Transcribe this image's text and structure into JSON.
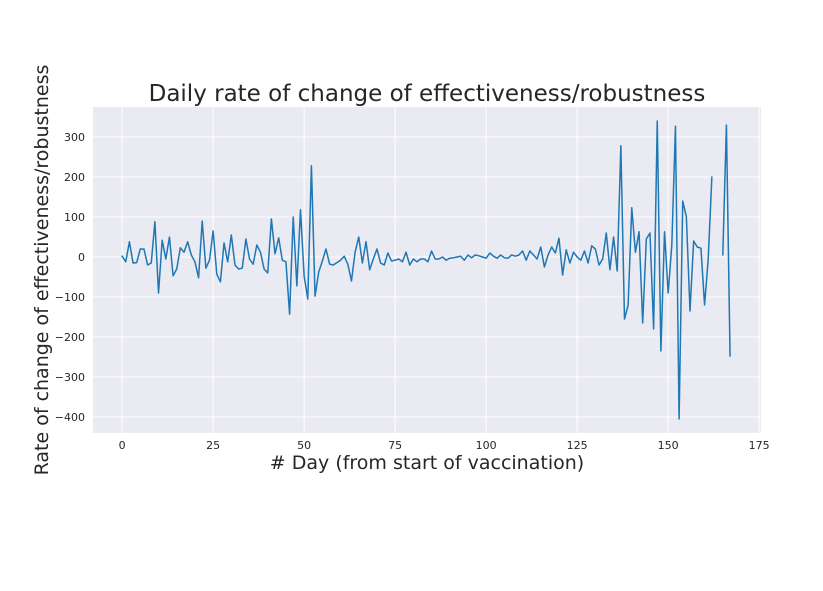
{
  "chart_data": {
    "type": "line",
    "title": "Daily rate of change of effectiveness/robustness",
    "xlabel": "# Day (from start of vaccination)",
    "ylabel": "Rate of change of effectiveness/robustness",
    "xlim": [
      -8,
      175.5
    ],
    "ylim": [
      -440,
      375
    ],
    "xticks": [
      0,
      25,
      50,
      75,
      100,
      125,
      150,
      175
    ],
    "yticks": [
      -400,
      -300,
      -200,
      -100,
      0,
      100,
      200,
      300
    ],
    "grid": true,
    "colors": {
      "background": "#eaeaf2",
      "grid": "#ffffff",
      "line": "#1f77b4",
      "text": "#262626"
    },
    "series": [
      {
        "x": [
          0,
          1,
          2,
          3,
          4,
          5,
          6,
          7,
          8,
          9,
          10,
          11,
          12,
          13,
          14,
          15,
          16,
          17,
          18,
          19,
          20,
          21,
          22,
          23,
          24,
          25,
          26,
          27,
          28,
          29,
          30,
          31,
          32,
          33,
          34,
          35,
          36,
          37,
          38,
          39,
          40,
          41,
          42,
          43,
          44,
          45,
          46,
          47,
          48,
          49,
          50,
          51,
          52,
          53,
          54,
          55,
          56,
          57,
          58,
          59,
          60,
          61,
          62,
          63,
          64,
          65,
          66,
          67,
          68,
          69,
          70,
          71,
          72,
          73,
          74,
          75,
          76,
          77,
          78,
          79,
          80,
          81,
          82,
          83,
          84,
          85,
          86,
          87,
          88,
          89,
          90,
          91,
          92,
          93,
          94,
          95,
          96,
          97,
          98,
          99,
          100,
          101,
          102,
          103,
          104,
          105,
          106,
          107,
          108,
          109,
          110,
          111,
          112,
          113,
          114,
          115,
          116,
          117,
          118,
          119,
          120,
          121,
          122,
          123,
          124,
          125,
          126,
          127,
          128,
          129,
          130,
          131,
          132,
          133,
          134,
          135,
          136,
          137,
          138,
          139,
          140,
          141,
          142,
          143,
          144,
          145,
          146,
          147,
          148,
          149,
          150,
          151,
          152,
          153,
          154,
          155,
          156,
          157,
          158,
          159,
          160,
          161,
          162,
          163,
          164,
          165,
          166,
          167
        ],
        "y": [
          2,
          -12,
          38,
          -15,
          -14,
          20,
          20,
          -20,
          -15,
          88,
          -90,
          42,
          -5,
          50,
          -47,
          -30,
          23,
          12,
          38,
          5,
          -12,
          -52,
          90,
          -28,
          -8,
          65,
          -43,
          -62,
          35,
          -12,
          55,
          -20,
          -30,
          -28,
          45,
          -5,
          -18,
          30,
          12,
          -30,
          -40,
          95,
          8,
          48,
          -8,
          -12,
          -143,
          100,
          -72,
          118,
          -48,
          -105,
          228,
          -98,
          -38,
          -10,
          20,
          -18,
          -20,
          -14,
          -8,
          2,
          -18,
          -60,
          12,
          50,
          -15,
          38,
          -32,
          -5,
          20,
          -15,
          -20,
          10,
          -10,
          -8,
          -5,
          -12,
          12,
          -20,
          -5,
          -12,
          -5,
          -5,
          -12,
          15,
          -5,
          -5,
          0,
          -8,
          -3,
          -2,
          0,
          2,
          -8,
          5,
          -2,
          5,
          3,
          0,
          -3,
          10,
          2,
          -3,
          5,
          -2,
          -3,
          5,
          2,
          5,
          15,
          -8,
          15,
          5,
          -5,
          25,
          -25,
          5,
          25,
          10,
          47,
          -45,
          18,
          -15,
          12,
          0,
          -8,
          15,
          -15,
          28,
          20,
          -20,
          -5,
          60,
          -32,
          50,
          -35,
          278,
          -155,
          -120,
          123,
          12,
          63,
          -165,
          45,
          60,
          -180,
          340,
          -235,
          63,
          -90,
          30,
          327,
          -405,
          140,
          100,
          -135,
          40,
          25,
          22,
          -120,
          -5,
          200,
          null,
          null,
          5,
          330,
          -248
        ]
      }
    ]
  }
}
